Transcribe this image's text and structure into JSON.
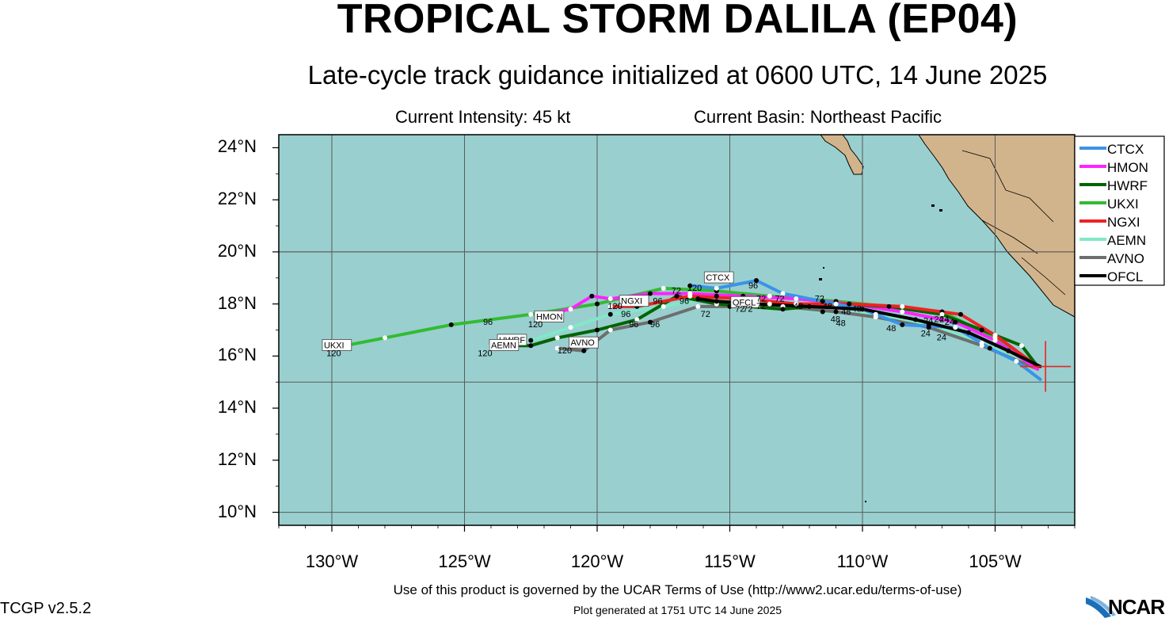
{
  "title": "TROPICAL STORM DALILA (EP04)",
  "subtitle": "Late-cycle track guidance initialized at 0600 UTC, 14 June 2025",
  "intensity": "Current Intensity: 45 kt",
  "basin": "Current Basin: Northeast Pacific",
  "footer": {
    "terms": "Use of this product is governed by the UCAR Terms of Use (http://www2.ucar.edu/terms-of-use)",
    "generated": "Plot generated at 1751 UTC   14 June 2025",
    "version": "TCGP v2.5.2",
    "logo": "NCAR"
  },
  "colors": {
    "ocean": "#99cfcf",
    "land": "#d2b48c",
    "grid": "#5a5a5a"
  },
  "axes": {
    "lon_range": [
      -132,
      -102
    ],
    "lat_range": [
      9.5,
      24.5
    ],
    "y_ticks": [
      {
        "v": 24,
        "t": "24°N"
      },
      {
        "v": 22,
        "t": "22°N"
      },
      {
        "v": 20,
        "t": "20°N"
      },
      {
        "v": 18,
        "t": "18°N"
      },
      {
        "v": 16,
        "t": "16°N"
      },
      {
        "v": 14,
        "t": "14°N"
      },
      {
        "v": 12,
        "t": "12°N"
      },
      {
        "v": 10,
        "t": "10°N"
      }
    ],
    "x_ticks": [
      {
        "v": -130,
        "t": "130°W"
      },
      {
        "v": -125,
        "t": "125°W"
      },
      {
        "v": -120,
        "t": "120°W"
      },
      {
        "v": -115,
        "t": "115°W"
      },
      {
        "v": -110,
        "t": "110°W"
      },
      {
        "v": -105,
        "t": "105°W"
      }
    ]
  },
  "current_position": {
    "lon": -103.1,
    "lat": 15.6
  },
  "chart_data": {
    "type": "line",
    "x_label": "",
    "y_label": "",
    "series": [
      {
        "name": "CTCX",
        "color": "#3a93e8",
        "label_at": {
          "lon": -115.9,
          "lat": 18.9
        },
        "points": [
          [
            -103.3,
            15.1
          ],
          [
            -104.2,
            15.8
          ],
          [
            -105.2,
            16.3
          ],
          [
            -106.5,
            17.1
          ],
          [
            -108.5,
            17.2
          ],
          [
            -110.0,
            17.8
          ],
          [
            -111.5,
            18.1
          ],
          [
            -113.0,
            18.4
          ],
          [
            -114.0,
            18.9
          ],
          [
            -115.5,
            18.6
          ],
          [
            -116.5,
            18.7
          ]
        ]
      },
      {
        "name": "HMON",
        "color": "#ff22ff",
        "label_at": {
          "lon": -122.3,
          "lat": 17.4
        },
        "points": [
          [
            -103.4,
            15.5
          ],
          [
            -105.0,
            16.6
          ],
          [
            -106.5,
            17.3
          ],
          [
            -108.5,
            17.7
          ],
          [
            -110.5,
            18.0
          ],
          [
            -112.5,
            18.2
          ],
          [
            -114.5,
            18.3
          ],
          [
            -116.5,
            18.4
          ],
          [
            -118.0,
            18.4
          ],
          [
            -119.5,
            18.2
          ],
          [
            -120.2,
            18.3
          ],
          [
            -121.0,
            17.8
          ],
          [
            -122.0,
            17.6
          ]
        ]
      },
      {
        "name": "HWRF",
        "color": "#006400",
        "label_at": {
          "lon": -123.7,
          "lat": 16.5
        },
        "points": [
          [
            -103.4,
            15.6
          ],
          [
            -104.0,
            16.4
          ],
          [
            -105.5,
            17.0
          ],
          [
            -107.0,
            17.6
          ],
          [
            -109.0,
            17.9
          ],
          [
            -111.0,
            18.0
          ],
          [
            -113.0,
            17.8
          ],
          [
            -115.5,
            18.0
          ],
          [
            -117.0,
            18.3
          ],
          [
            -118.5,
            17.4
          ],
          [
            -120.0,
            17.0
          ],
          [
            -121.5,
            16.7
          ],
          [
            -122.5,
            16.4
          ],
          [
            -124.0,
            16.4
          ]
        ]
      },
      {
        "name": "UKXI",
        "color": "#33bb33",
        "label_at": {
          "lon": -130.3,
          "lat": 16.3
        },
        "points": [
          [
            -103.4,
            15.5
          ],
          [
            -105.0,
            16.7
          ],
          [
            -107.0,
            17.7
          ],
          [
            -109.0,
            17.9
          ],
          [
            -111.0,
            18.1
          ],
          [
            -113.5,
            18.3
          ],
          [
            -115.5,
            18.5
          ],
          [
            -117.5,
            18.6
          ],
          [
            -120.0,
            18.0
          ],
          [
            -122.5,
            17.6
          ],
          [
            -125.5,
            17.2
          ],
          [
            -128.0,
            16.7
          ],
          [
            -130.0,
            16.3
          ]
        ]
      },
      {
        "name": "NGXI",
        "color": "#ee2222",
        "label_at": {
          "lon": -119.1,
          "lat": 18.0
        },
        "points": [
          [
            -103.4,
            15.6
          ],
          [
            -105.0,
            16.8
          ],
          [
            -106.3,
            17.6
          ],
          [
            -108.5,
            17.9
          ],
          [
            -110.5,
            18.0
          ],
          [
            -112.5,
            18.0
          ],
          [
            -114.5,
            18.2
          ],
          [
            -116.5,
            18.3
          ],
          [
            -118.5,
            17.9
          ],
          [
            -119.5,
            17.9
          ]
        ]
      },
      {
        "name": "AEMN",
        "color": "#80e8c8",
        "label_at": {
          "lon": -124.0,
          "lat": 16.3
        },
        "points": [
          [
            -103.4,
            15.5
          ],
          [
            -105.5,
            16.5
          ],
          [
            -107.5,
            17.2
          ],
          [
            -109.5,
            17.6
          ],
          [
            -111.5,
            17.7
          ],
          [
            -113.5,
            18.0
          ],
          [
            -115.5,
            18.3
          ],
          [
            -117.5,
            17.9
          ],
          [
            -119.5,
            17.6
          ],
          [
            -121.0,
            17.1
          ],
          [
            -122.5,
            16.6
          ],
          [
            -124.0,
            16.3
          ]
        ]
      },
      {
        "name": "AVNO",
        "color": "#6e6e6e",
        "label_at": {
          "lon": -121.0,
          "lat": 16.4
        },
        "points": [
          [
            -103.4,
            15.5
          ],
          [
            -105.5,
            16.4
          ],
          [
            -107.5,
            17.1
          ],
          [
            -109.5,
            17.5
          ],
          [
            -111.0,
            17.7
          ],
          [
            -113.0,
            17.9
          ],
          [
            -115.0,
            17.9
          ],
          [
            -116.2,
            17.9
          ],
          [
            -118.0,
            17.3
          ],
          [
            -119.5,
            17.0
          ],
          [
            -120.5,
            16.2
          ],
          [
            -121.5,
            16.3
          ]
        ]
      },
      {
        "name": "OFCL",
        "color": "#000000",
        "label_at": {
          "lon": -114.9,
          "lat": 17.95
        },
        "points": [
          [
            -103.3,
            15.6
          ],
          [
            -104.5,
            16.2
          ],
          [
            -106.0,
            16.9
          ],
          [
            -108.0,
            17.4
          ],
          [
            -110.0,
            17.8
          ],
          [
            -112.0,
            17.9
          ],
          [
            -114.0,
            18.0
          ],
          [
            -115.5,
            18.1
          ],
          [
            -116.2,
            18.2
          ]
        ]
      }
    ],
    "hour_labels": [
      {
        "t": "120",
        "lon": -130.2,
        "lat": 16.0
      },
      {
        "t": "96",
        "lon": -124.3,
        "lat": 17.2
      },
      {
        "t": "120",
        "lon": -122.6,
        "lat": 17.1
      },
      {
        "t": "120",
        "lon": -124.5,
        "lat": 16.0
      },
      {
        "t": "120",
        "lon": -121.5,
        "lat": 16.1
      },
      {
        "t": "120",
        "lon": -119.6,
        "lat": 17.8
      },
      {
        "t": "96",
        "lon": -119.1,
        "lat": 17.5
      },
      {
        "t": "96",
        "lon": -118.8,
        "lat": 17.1
      },
      {
        "t": "96",
        "lon": -118.0,
        "lat": 17.1
      },
      {
        "t": "96",
        "lon": -117.9,
        "lat": 18.0
      },
      {
        "t": "72",
        "lon": -117.2,
        "lat": 18.4
      },
      {
        "t": "96",
        "lon": -116.9,
        "lat": 18.0
      },
      {
        "t": "120",
        "lon": -116.6,
        "lat": 18.5
      },
      {
        "t": "96",
        "lon": -114.3,
        "lat": 18.6
      },
      {
        "t": "72",
        "lon": -116.1,
        "lat": 17.5
      },
      {
        "t": "72",
        "lon": -114.8,
        "lat": 17.7
      },
      {
        "t": "72",
        "lon": -114.5,
        "lat": 17.7
      },
      {
        "t": "72",
        "lon": -114.0,
        "lat": 18.1
      },
      {
        "t": "72",
        "lon": -114.0,
        "lat": 17.8
      },
      {
        "t": "72",
        "lon": -113.3,
        "lat": 18.1
      },
      {
        "t": "48",
        "lon": -112.6,
        "lat": 17.8
      },
      {
        "t": "72",
        "lon": -111.8,
        "lat": 18.1
      },
      {
        "t": "48",
        "lon": -111.5,
        "lat": 17.8
      },
      {
        "t": "48",
        "lon": -111.2,
        "lat": 17.3
      },
      {
        "t": "48",
        "lon": -111.0,
        "lat": 17.15
      },
      {
        "t": "48",
        "lon": -110.4,
        "lat": 17.7
      },
      {
        "t": "48",
        "lon": -110.8,
        "lat": 17.6
      },
      {
        "t": "48",
        "lon": -109.1,
        "lat": 16.95
      },
      {
        "t": "24",
        "lon": -107.8,
        "lat": 16.75
      },
      {
        "t": "24",
        "lon": -107.2,
        "lat": 16.6
      },
      {
        "t": "24",
        "lon": -107.7,
        "lat": 17.25
      },
      {
        "t": "24",
        "lon": -107.3,
        "lat": 17.3
      },
      {
        "t": "24",
        "lon": -107.1,
        "lat": 17.3
      },
      {
        "t": "24",
        "lon": -106.9,
        "lat": 17.2
      }
    ]
  }
}
